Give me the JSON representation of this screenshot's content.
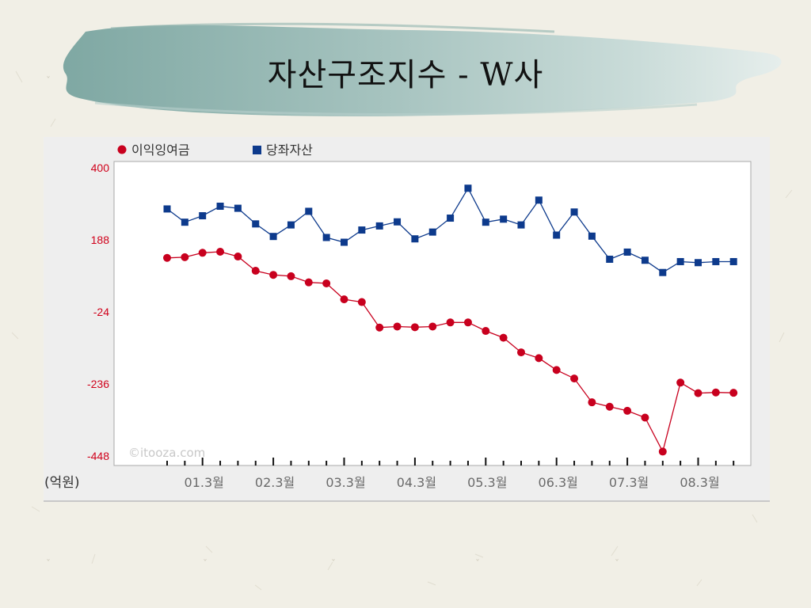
{
  "slide": {
    "title": "자산구조지수 - W사"
  },
  "chart_data": {
    "type": "line",
    "title": "",
    "unit_label": "(억원)",
    "watermark": "©itooza.com",
    "ylim": [
      -448,
      400
    ],
    "y_ticks": [
      400,
      188,
      -24,
      -236,
      -448
    ],
    "x_labels": [
      "01.3월",
      "02.3월",
      "03.3월",
      "04.3월",
      "05.3월",
      "06.3월",
      "07.3월",
      "08.3월"
    ],
    "x_label_positions": [
      2,
      6,
      10,
      14,
      18,
      22,
      26,
      30
    ],
    "point_count": 33,
    "legend_position": "top-left",
    "grid": false,
    "colors": {
      "earnings": "#c8001e",
      "current": "#0d3a8c",
      "axis_text": "#d0001a",
      "label_text": "#333333"
    },
    "series": [
      {
        "name": "이익잉여금",
        "marker": "circle",
        "values": [
          135,
          137,
          150,
          153,
          139,
          97,
          85,
          81,
          63,
          60,
          13,
          5,
          -70,
          -67,
          -69,
          -67,
          -55,
          -55,
          -80,
          -100,
          -143,
          -160,
          -195,
          -220,
          -290,
          -303,
          -315,
          -335,
          -435,
          -232,
          -263,
          -261,
          -262
        ]
      },
      {
        "name": "당좌자산",
        "marker": "square",
        "values": [
          279,
          240,
          259,
          287,
          281,
          235,
          198,
          232,
          272,
          195,
          181,
          217,
          229,
          241,
          191,
          211,
          252,
          340,
          240,
          249,
          232,
          305,
          202,
          270,
          199,
          131,
          152,
          128,
          92,
          124,
          121,
          124,
          124
        ]
      }
    ]
  }
}
